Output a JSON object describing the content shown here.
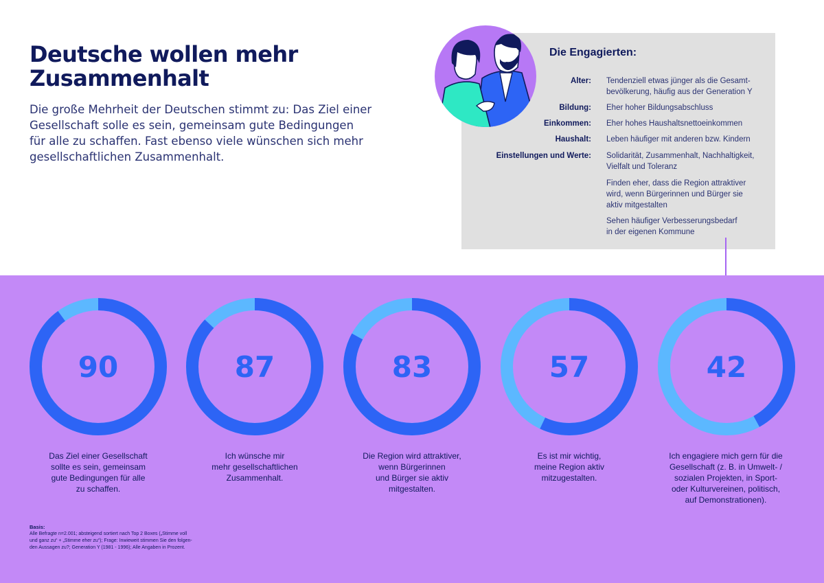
{
  "header": {
    "title_lines": [
      "Deutsche wollen mehr",
      "Zusammenhalt"
    ],
    "intro_lines": [
      "Die große Mehrheit der Deutschen stimmt zu: Das Ziel einer",
      "Gesellschaft solle es sein, gemeinsam gute Bedingungen",
      "für alle zu schaffen. Fast ebenso viele wünschen sich mehr",
      "gesellschaftlichen Zusammenhalt."
    ]
  },
  "panel": {
    "title": "Die Engagierten:",
    "rows": [
      {
        "key": "Alter:",
        "lines": [
          "Tendenziell etwas jünger als die Gesamt-",
          "bevölkerung, häufig aus der Generation Y"
        ]
      },
      {
        "key": "Bildung:",
        "lines": [
          "Eher hoher Bildungsabschluss"
        ]
      },
      {
        "key": "Einkommen:",
        "lines": [
          "Eher hohes Haushaltsnettoeinkommen"
        ]
      },
      {
        "key": "Haushalt:",
        "lines": [
          "Leben häufiger mit anderen bzw. Kindern"
        ]
      },
      {
        "key": "Einstellungen und Werte:",
        "lines": [
          "Solidarität, Zusammenhalt, Nachhaltigkeit,",
          "Vielfalt und Toleranz"
        ]
      },
      {
        "key": "",
        "lines": [
          "Finden eher, dass die Region attraktiver",
          "wird, wenn Bürgerinnen und Bürger sie",
          "aktiv mitgestalten"
        ]
      },
      {
        "key": "",
        "lines": [
          "Sehen häufiger Verbesserungsbedarf",
          "in der eigenen Kommune"
        ]
      }
    ]
  },
  "illustration": {
    "icon": "two-people-illustration"
  },
  "colors": {
    "navy": "#101a5c",
    "band": "#c389f7",
    "ring_fill": "#2d64f5",
    "ring_rest": "#5cb8ff",
    "panel": "#e0e0e0",
    "avatar_bg": "#b778f5"
  },
  "chart_data": {
    "type": "donut",
    "unit": "%",
    "max": 100,
    "items": [
      {
        "value": 90,
        "caption_lines": [
          "Das Ziel einer Gesellschaft",
          "sollte es sein, gemeinsam",
          "gute Bedingungen für alle",
          "zu schaffen."
        ]
      },
      {
        "value": 87,
        "caption_lines": [
          "Ich wünsche mir",
          "mehr gesellschaftlichen",
          "Zusammenhalt."
        ]
      },
      {
        "value": 83,
        "caption_lines": [
          "Die Region wird attraktiver,",
          "wenn Bürgerinnen",
          "und Bürger sie aktiv",
          "mitgestalten."
        ]
      },
      {
        "value": 57,
        "caption_lines": [
          "Es ist mir wichtig,",
          "meine Region aktiv",
          "mitzugestalten."
        ]
      },
      {
        "value": 42,
        "caption_lines": [
          "Ich engagiere mich gern für die",
          "Gesellschaft (z. B. in Umwelt- /",
          "sozialen Projekten, in Sport-",
          "oder Kulturvereinen, politisch,",
          "auf Demonstrationen)."
        ]
      }
    ]
  },
  "basis": {
    "heading": "Basis:",
    "lines": [
      "Alle Befragte n=2.001; absteigend sortiert nach Top 2 Boxes („Stimme voll",
      "und ganz zu“ + „Stimme eher zu“); Frage: Inwieweit stimmen Sie den folgen-",
      "den Aussagen zu?; Generation Y (1981 - 1996); Alle Angaben in Prozent."
    ]
  }
}
